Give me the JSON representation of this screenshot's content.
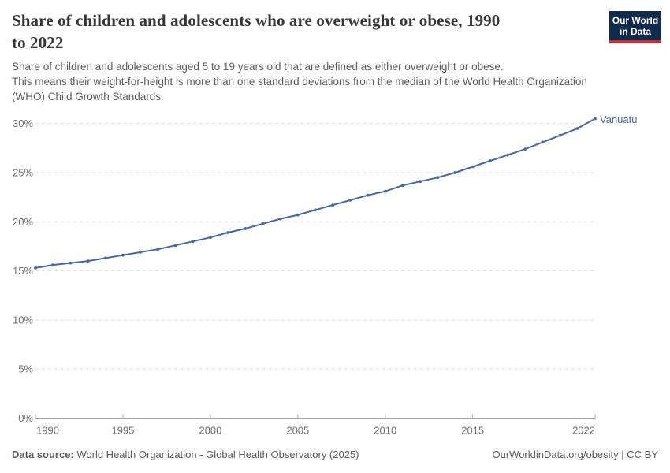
{
  "header": {
    "title": "Share of children and adolescents who are overweight or obese, 1990 to 2022",
    "title_lines": [
      "Share of children and adolescents who are overweight or obese, 1990",
      "to 2022"
    ],
    "subtitle_lines": [
      "Share of children and adolescents aged 5 to 19 years old that are defined as either overweight or obese.",
      "This means their weight-for-height is more than one standard deviations from the median of the World Health Organization",
      "(WHO) Child Growth Standards."
    ]
  },
  "logo": {
    "line1": "Our World",
    "line2": "in Data"
  },
  "chart_data": {
    "type": "line",
    "title": "Share of children and adolescents who are overweight or obese, 1990 to 2022",
    "xlabel": "",
    "ylabel": "",
    "x": [
      1990,
      1991,
      1992,
      1993,
      1994,
      1995,
      1996,
      1997,
      1998,
      1999,
      2000,
      2001,
      2002,
      2003,
      2004,
      2005,
      2006,
      2007,
      2008,
      2009,
      2010,
      2011,
      2012,
      2013,
      2014,
      2015,
      2016,
      2017,
      2018,
      2019,
      2020,
      2021,
      2022
    ],
    "series": [
      {
        "name": "Vanuatu",
        "values": [
          15.3,
          15.6,
          15.8,
          16.0,
          16.3,
          16.6,
          16.9,
          17.2,
          17.6,
          18.0,
          18.4,
          18.9,
          19.3,
          19.8,
          20.3,
          20.7,
          21.2,
          21.7,
          22.2,
          22.7,
          23.1,
          23.7,
          24.1,
          24.5,
          25.0,
          25.6,
          26.2,
          26.8,
          27.4,
          28.1,
          28.8,
          29.5,
          30.5
        ]
      }
    ],
    "end_label": "Vanuatu",
    "xticks": [
      1990,
      1995,
      2000,
      2005,
      2010,
      2015,
      2022
    ],
    "yticks": [
      0,
      5,
      10,
      15,
      20,
      25,
      30
    ],
    "ytick_suffix": "%",
    "xlim": [
      1990,
      2022
    ],
    "ylim": [
      0,
      30.6
    ],
    "grid": "horizontal-dashed",
    "legend_position": "end-of-line"
  },
  "colors": {
    "line": "#4767a5",
    "end_label": "#4767a5",
    "grid": "#dcdcdc",
    "axis": "#a8a8a8",
    "tick_label": "#6e6e6e",
    "logo_bg": "#102a4c",
    "logo_stripe": "#d42b2f"
  },
  "footer": {
    "source_label": "Data source:",
    "source_text": " World Health Organization - Global Health Observatory (2025)",
    "credit": "OurWorldinData.org/obesity | CC BY"
  }
}
